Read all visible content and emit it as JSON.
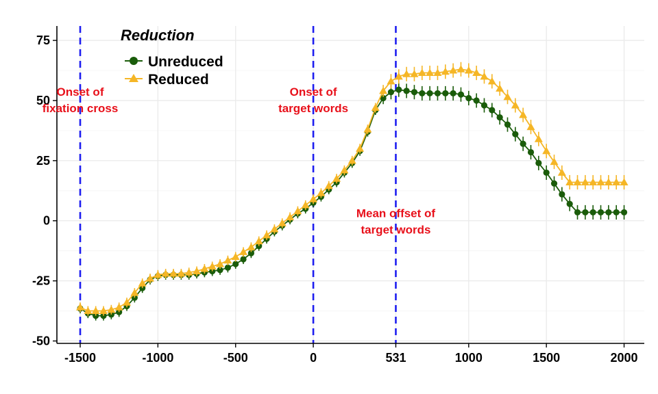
{
  "chart_data": {
    "type": "line",
    "title": "",
    "xlabel": "",
    "ylabel": "",
    "xlim": [
      -1650,
      2130
    ],
    "ylim": [
      -51,
      81
    ],
    "x_ticks": [
      -1500,
      -1000,
      -500,
      0,
      531,
      1000,
      1500,
      2000
    ],
    "x_tick_labels": [
      "-1500",
      "-1000",
      "-500",
      "0",
      "531",
      "1000",
      "1500",
      "2000"
    ],
    "y_ticks": [
      -50,
      -25,
      0,
      25,
      50,
      75
    ],
    "y_tick_labels": [
      "-50",
      "-25",
      "0",
      "25",
      "50",
      "75"
    ],
    "grid": true,
    "legend": {
      "title": "Reduction",
      "position": "top-left",
      "entries": [
        "Unreduced",
        "Reduced"
      ]
    },
    "vlines": [
      -1500,
      0,
      531
    ],
    "annotations": [
      {
        "lines": [
          "Onset of",
          "fixation cross"
        ],
        "x": -1500,
        "y": 52
      },
      {
        "lines": [
          "Onset of",
          "target words"
        ],
        "x": 0,
        "y": 52
      },
      {
        "lines": [
          "Mean offset of",
          "target words"
        ],
        "x": 531,
        "y": 1.5
      }
    ],
    "x": [
      -1500,
      -1450,
      -1400,
      -1350,
      -1300,
      -1250,
      -1200,
      -1150,
      -1100,
      -1050,
      -1000,
      -950,
      -900,
      -850,
      -800,
      -750,
      -700,
      -650,
      -600,
      -550,
      -500,
      -450,
      -400,
      -350,
      -300,
      -250,
      -200,
      -150,
      -100,
      -50,
      0,
      50,
      100,
      150,
      200,
      250,
      300,
      350,
      400,
      450,
      500,
      550,
      600,
      650,
      700,
      750,
      800,
      850,
      900,
      950,
      1000,
      1050,
      1100,
      1150,
      1200,
      1250,
      1300,
      1350,
      1400,
      1450,
      1500,
      1550,
      1600,
      1650,
      1700,
      1750,
      1800,
      1850,
      1900,
      1950,
      2000
    ],
    "series": [
      {
        "name": "Unreduced",
        "color": "#1a5c0a",
        "marker": "circle",
        "values": [
          -36.5,
          -38.5,
          -39.5,
          -39.5,
          -39,
          -38,
          -35.5,
          -32,
          -28,
          -24.5,
          -23,
          -22.5,
          -22.5,
          -22.5,
          -22.5,
          -22,
          -21.5,
          -21,
          -20.5,
          -19.5,
          -18,
          -16,
          -13.5,
          -10.5,
          -7.5,
          -4.5,
          -2,
          0.5,
          3,
          5,
          7.5,
          10,
          13,
          16,
          20,
          24,
          29,
          37,
          46,
          51,
          53.5,
          54.5,
          54,
          53.5,
          53,
          53,
          53,
          53,
          53,
          52.5,
          51,
          50,
          48,
          46,
          43,
          40,
          36,
          32,
          28.5,
          24,
          20,
          15.5,
          11,
          7,
          3.5,
          3.5,
          3.5,
          3.5,
          3.5,
          3.5,
          3.5
        ],
        "error": [
          2,
          2,
          2,
          2,
          2,
          2,
          2,
          2,
          2,
          2,
          2,
          2,
          2,
          2,
          2,
          2,
          2,
          2,
          2,
          2,
          2,
          2,
          2,
          2,
          2,
          2,
          2,
          2,
          2,
          2,
          2,
          2,
          2,
          2,
          2,
          2,
          2,
          2,
          2,
          2.5,
          3,
          3,
          3,
          3,
          3,
          3,
          3,
          3,
          3,
          3,
          3,
          3,
          3,
          3,
          3,
          3,
          3,
          3,
          3,
          3,
          3,
          3,
          3,
          3,
          3,
          3,
          3,
          3,
          3,
          3,
          3
        ]
      },
      {
        "name": "Reduced",
        "color": "#f5b626",
        "marker": "triangle",
        "values": [
          -36,
          -37.5,
          -37.5,
          -37.5,
          -37,
          -36,
          -34,
          -30,
          -26,
          -24,
          -22.5,
          -22,
          -22,
          -22,
          -21.5,
          -21,
          -20,
          -19,
          -18,
          -16.5,
          -15,
          -13,
          -11,
          -8.5,
          -6,
          -3.5,
          -1,
          1.5,
          4,
          6.5,
          9,
          11.5,
          14.5,
          17.5,
          21,
          25,
          30,
          38,
          47,
          54,
          58,
          60,
          61,
          61,
          61.5,
          61.5,
          61.5,
          62,
          62.5,
          63,
          62.5,
          61.5,
          60,
          58,
          55,
          51.5,
          48,
          44,
          39,
          34,
          29,
          24.5,
          20,
          16,
          16,
          16,
          16,
          16,
          16,
          16,
          16
        ],
        "error": [
          2,
          2,
          2,
          2,
          2,
          2,
          2,
          2,
          2,
          2,
          2,
          2,
          2,
          2,
          2,
          2,
          2,
          2,
          2,
          2,
          2,
          2,
          2,
          2,
          2,
          2,
          2,
          2,
          2,
          2,
          2,
          2,
          2,
          2,
          2,
          2,
          2,
          2,
          2,
          2.5,
          3,
          3,
          3,
          3,
          3,
          3,
          3,
          3,
          3,
          3,
          3,
          3,
          3,
          3,
          3,
          3,
          3,
          3,
          3,
          3,
          3,
          3,
          3,
          3,
          3,
          3,
          3,
          3,
          3,
          3,
          3
        ]
      }
    ]
  }
}
